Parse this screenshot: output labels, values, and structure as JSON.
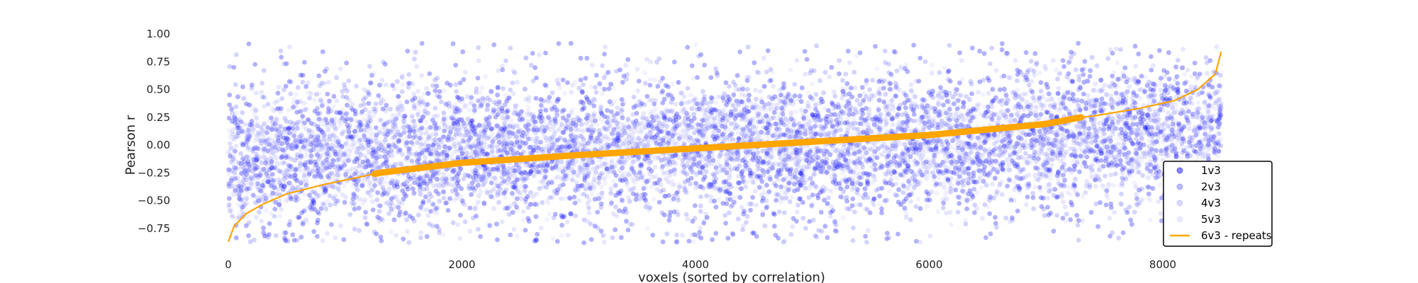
{
  "chart_data": {
    "type": "scatter",
    "xlabel": "voxels (sorted by correlation)",
    "ylabel": "Pearson r",
    "xlim": [
      -100,
      8750
    ],
    "ylim": [
      -0.9,
      1.0
    ],
    "xticks": [
      0,
      2000,
      4000,
      6000,
      8000
    ],
    "xtick_labels": [
      "0",
      "2000",
      "4000",
      "6000",
      "8000"
    ],
    "yticks": [
      1.0,
      0.75,
      0.5,
      0.25,
      0.0,
      -0.25,
      -0.5,
      -0.75
    ],
    "ytick_labels": [
      "1.00",
      "0.75",
      "0.50",
      "0.25",
      "0.00",
      "−0.25",
      "−0.50",
      "−0.75"
    ],
    "grid": false,
    "legend_position": "lower-right",
    "n_voxels": 8500,
    "series": [
      {
        "name": "1v3",
        "kind": "scatter",
        "color": "#0000ff",
        "alpha": 0.3,
        "spread": 0.38
      },
      {
        "name": "2v3",
        "kind": "scatter",
        "color": "#3c3cff",
        "alpha": 0.22,
        "spread": 0.34
      },
      {
        "name": "4v3",
        "kind": "scatter",
        "color": "#7a7aff",
        "alpha": 0.18,
        "spread": 0.3
      },
      {
        "name": "5v3",
        "kind": "scatter",
        "color": "#b0b0ff",
        "alpha": 0.16,
        "spread": 0.26
      },
      {
        "name": "6v3 - repeats",
        "kind": "line",
        "color": "#ffa500",
        "x": [
          0,
          50,
          150,
          300,
          500,
          800,
          1250,
          1300,
          2000,
          3000,
          4000,
          5000,
          6000,
          7000,
          7300,
          7400,
          7800,
          8100,
          8300,
          8450,
          8500
        ],
        "y": [
          -0.87,
          -0.73,
          -0.62,
          -0.53,
          -0.44,
          -0.36,
          -0.26,
          -0.25,
          -0.16,
          -0.09,
          -0.03,
          0.03,
          0.09,
          0.19,
          0.25,
          0.26,
          0.33,
          0.4,
          0.5,
          0.64,
          0.84
        ]
      }
    ]
  }
}
